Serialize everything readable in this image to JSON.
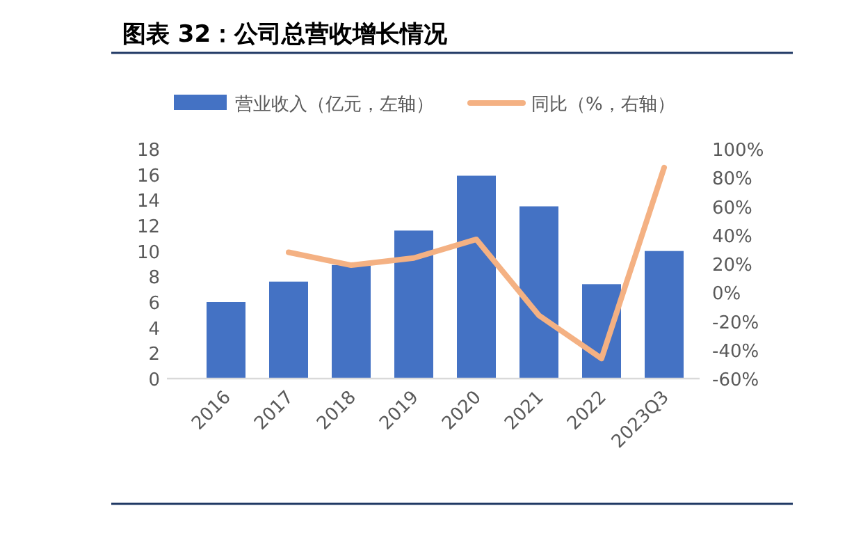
{
  "chart_data": {
    "type": "bar",
    "title": "图表 32：公司总营收增长情况",
    "categories": [
      "2016",
      "2017",
      "2018",
      "2019",
      "2020",
      "2021",
      "2022",
      "2023Q3"
    ],
    "series": [
      {
        "name": "营业收入（亿元，左轴）",
        "color": "#4472c4",
        "values": [
          6.0,
          7.6,
          8.9,
          11.6,
          15.9,
          13.5,
          7.4,
          10.0
        ]
      },
      {
        "name": "同比（%，右轴）",
        "type": "line",
        "axis": "y2",
        "color": "#f4b183",
        "values": [
          null,
          28,
          19,
          24,
          37,
          -16,
          -46,
          87
        ]
      }
    ],
    "ylim": [
      0,
      18
    ],
    "yticks": [
      0,
      2,
      4,
      6,
      8,
      10,
      12,
      14,
      16,
      18
    ],
    "y2lim": [
      -60,
      100
    ],
    "y2ticks": [
      {
        "value": -60,
        "label": "-60%"
      },
      {
        "value": -40,
        "label": "-40%"
      },
      {
        "value": -20,
        "label": "-20%"
      },
      {
        "value": 0,
        "label": "0%"
      },
      {
        "value": 20,
        "label": "20%"
      },
      {
        "value": 40,
        "label": "40%"
      },
      {
        "value": 60,
        "label": "60%"
      },
      {
        "value": 80,
        "label": "80%"
      },
      {
        "value": 100,
        "label": "100%"
      }
    ],
    "legend": "top",
    "grid": false
  }
}
